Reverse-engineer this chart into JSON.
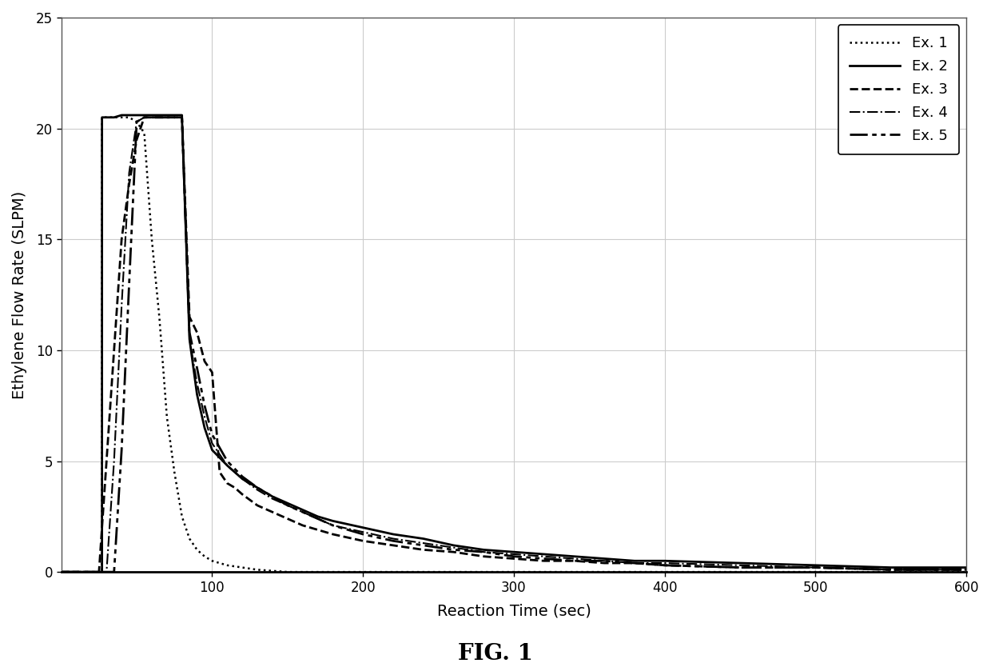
{
  "title": "FIG. 1",
  "xlabel": "Reaction Time (sec)",
  "ylabel": "Ethylene Flow Rate (SLPM)",
  "xlim": [
    0,
    600
  ],
  "ylim": [
    0,
    25
  ],
  "xticks": [
    100,
    200,
    300,
    400,
    500,
    600
  ],
  "yticks": [
    0,
    5,
    10,
    15,
    20,
    25
  ],
  "background_color": "#ffffff",
  "series": [
    {
      "label": "Ex. 1",
      "linestyle": "dotted",
      "linewidth": 1.8,
      "color": "#000000",
      "x": [
        0,
        27,
        27,
        30,
        35,
        40,
        45,
        50,
        55,
        60,
        65,
        70,
        75,
        80,
        85,
        90,
        95,
        100,
        110,
        120,
        130,
        140,
        150,
        160,
        170,
        180,
        200,
        220,
        240,
        260,
        280,
        300,
        350,
        400,
        450,
        500,
        550,
        600
      ],
      "y": [
        0,
        0,
        20.5,
        20.5,
        20.5,
        20.5,
        20.5,
        20.3,
        19.8,
        15.0,
        11.5,
        7.0,
        4.5,
        2.5,
        1.5,
        1.0,
        0.7,
        0.5,
        0.3,
        0.2,
        0.1,
        0.05,
        0.0,
        0.0,
        0.0,
        0.0,
        0.0,
        0.0,
        0.0,
        0.0,
        0.0,
        0.0,
        0.0,
        0.0,
        0.0,
        0.0,
        0.0,
        0.0
      ]
    },
    {
      "label": "Ex. 2",
      "linestyle": "solid",
      "linewidth": 2.0,
      "color": "#000000",
      "x": [
        0,
        27,
        27,
        30,
        35,
        40,
        45,
        50,
        55,
        60,
        65,
        70,
        75,
        80,
        80,
        85,
        90,
        95,
        100,
        110,
        120,
        130,
        140,
        150,
        160,
        170,
        180,
        200,
        220,
        240,
        260,
        280,
        300,
        320,
        340,
        360,
        380,
        400,
        450,
        500,
        550,
        600
      ],
      "y": [
        0,
        0,
        20.5,
        20.5,
        20.5,
        20.6,
        20.6,
        20.6,
        20.6,
        20.6,
        20.6,
        20.6,
        20.6,
        20.6,
        20.5,
        10.5,
        8.0,
        6.5,
        5.5,
        4.8,
        4.2,
        3.8,
        3.4,
        3.1,
        2.8,
        2.5,
        2.3,
        2.0,
        1.7,
        1.5,
        1.2,
        1.0,
        0.9,
        0.8,
        0.7,
        0.6,
        0.5,
        0.5,
        0.4,
        0.3,
        0.2,
        0.2
      ]
    },
    {
      "label": "Ex. 3",
      "linestyle": "dashed",
      "linewidth": 2.0,
      "color": "#000000",
      "x": [
        0,
        25,
        30,
        35,
        40,
        45,
        50,
        55,
        60,
        65,
        70,
        75,
        80,
        85,
        90,
        95,
        100,
        105,
        110,
        115,
        120,
        130,
        140,
        150,
        160,
        170,
        180,
        200,
        220,
        240,
        260,
        280,
        300,
        320,
        340,
        360,
        380,
        400,
        450,
        500,
        550,
        600
      ],
      "y": [
        0,
        0,
        5.0,
        10.0,
        15.0,
        17.5,
        19.5,
        20.5,
        20.5,
        20.5,
        20.5,
        20.5,
        20.5,
        11.5,
        10.8,
        9.5,
        9.0,
        4.5,
        4.0,
        3.8,
        3.5,
        3.0,
        2.7,
        2.4,
        2.1,
        1.9,
        1.7,
        1.4,
        1.2,
        1.0,
        0.9,
        0.7,
        0.6,
        0.5,
        0.5,
        0.4,
        0.4,
        0.3,
        0.2,
        0.2,
        0.1,
        0.1
      ]
    },
    {
      "label": "Ex. 4",
      "linestyle": "dashdot",
      "linewidth": 1.5,
      "color": "#000000",
      "x": [
        0,
        30,
        35,
        40,
        45,
        50,
        55,
        60,
        65,
        70,
        75,
        80,
        85,
        90,
        95,
        100,
        110,
        120,
        130,
        140,
        150,
        160,
        170,
        180,
        200,
        220,
        240,
        260,
        280,
        300,
        320,
        340,
        360,
        380,
        400,
        450,
        500,
        550,
        600
      ],
      "y": [
        0,
        0,
        5.0,
        12.0,
        18.0,
        20.3,
        20.5,
        20.5,
        20.5,
        20.5,
        20.5,
        20.5,
        10.5,
        8.5,
        7.0,
        5.8,
        4.8,
        4.2,
        3.7,
        3.3,
        3.0,
        2.7,
        2.4,
        2.1,
        1.8,
        1.5,
        1.3,
        1.1,
        0.9,
        0.8,
        0.7,
        0.6,
        0.5,
        0.4,
        0.4,
        0.3,
        0.2,
        0.1,
        0.1
      ]
    },
    {
      "label": "Ex. 5",
      "linestyle": "custom_dash_dot_dot",
      "linewidth": 2.0,
      "color": "#000000",
      "x": [
        0,
        35,
        40,
        45,
        50,
        55,
        60,
        65,
        70,
        75,
        80,
        85,
        90,
        95,
        100,
        110,
        120,
        130,
        140,
        150,
        160,
        170,
        180,
        200,
        220,
        240,
        260,
        280,
        300,
        320,
        340,
        360,
        380,
        400,
        450,
        500,
        550,
        600
      ],
      "y": [
        0,
        0,
        5.5,
        13.0,
        20.3,
        20.5,
        20.5,
        20.5,
        20.5,
        20.5,
        20.5,
        10.8,
        9.2,
        7.5,
        6.2,
        5.0,
        4.3,
        3.8,
        3.4,
        3.0,
        2.7,
        2.4,
        2.1,
        1.7,
        1.4,
        1.2,
        1.0,
        0.9,
        0.7,
        0.6,
        0.5,
        0.5,
        0.4,
        0.3,
        0.2,
        0.2,
        0.1,
        0.1
      ]
    }
  ]
}
